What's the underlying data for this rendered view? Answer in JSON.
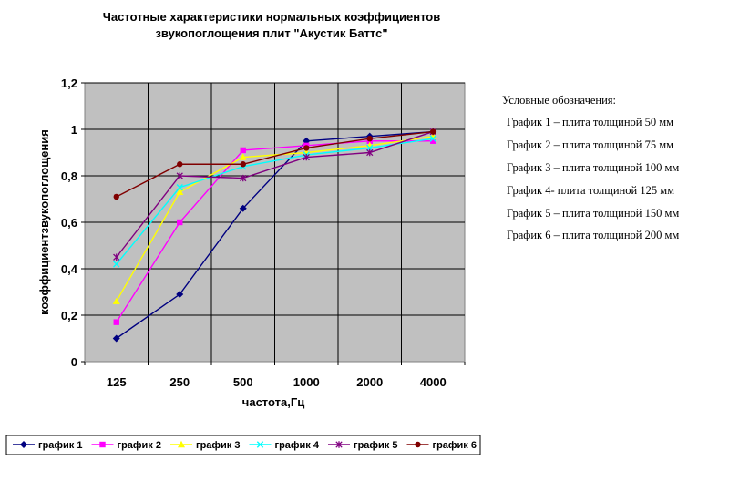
{
  "chart_data": {
    "type": "line",
    "title_lines": [
      "Частотные характеристики нормальных коэффициентов",
      "звукопоглощения плит \"Акустик Баттс\""
    ],
    "xlabel": "частота,Гц",
    "ylabel": "коэффициентзвукопоглощения",
    "categories": [
      "125",
      "250",
      "500",
      "1000",
      "2000",
      "4000"
    ],
    "ylim": [
      0,
      1.2
    ],
    "yticks": [
      "0",
      "0,2",
      "0,4",
      "0,6",
      "0,8",
      "1",
      "1,2"
    ],
    "grid": true,
    "series": [
      {
        "name": "график 1",
        "color": "#000080",
        "marker": "diamond",
        "values": [
          0.1,
          0.29,
          0.66,
          0.95,
          0.97,
          0.99
        ]
      },
      {
        "name": "график 2",
        "color": "#ff00ff",
        "marker": "square",
        "values": [
          0.17,
          0.6,
          0.91,
          0.93,
          0.95,
          0.95
        ]
      },
      {
        "name": "график 3",
        "color": "#ffff00",
        "marker": "triangle",
        "values": [
          0.26,
          0.73,
          0.88,
          0.9,
          0.93,
          0.97
        ]
      },
      {
        "name": "график 4",
        "color": "#00ffff",
        "marker": "x",
        "values": [
          0.42,
          0.75,
          0.84,
          0.89,
          0.92,
          0.96
        ]
      },
      {
        "name": "график 5",
        "color": "#800080",
        "marker": "star",
        "values": [
          0.45,
          0.8,
          0.79,
          0.88,
          0.9,
          0.99
        ]
      },
      {
        "name": "график 6",
        "color": "#800000",
        "marker": "circle",
        "values": [
          0.71,
          0.85,
          0.85,
          0.92,
          0.96,
          0.99
        ]
      }
    ],
    "notes": {
      "heading": "Условные обозначения:",
      "items": [
        "График 1 – плита толщиной 50 мм",
        "График 2 – плита  толщиной 75 мм",
        "График 3 – плита толщиной 100 мм",
        "График 4- плита толщиной 125 мм",
        "График 5 – плита толщиной 150 мм",
        "График 6 – плита толщиной 200 мм"
      ]
    },
    "legend_position": "bottom",
    "plot_background": "#c0c0c0"
  }
}
